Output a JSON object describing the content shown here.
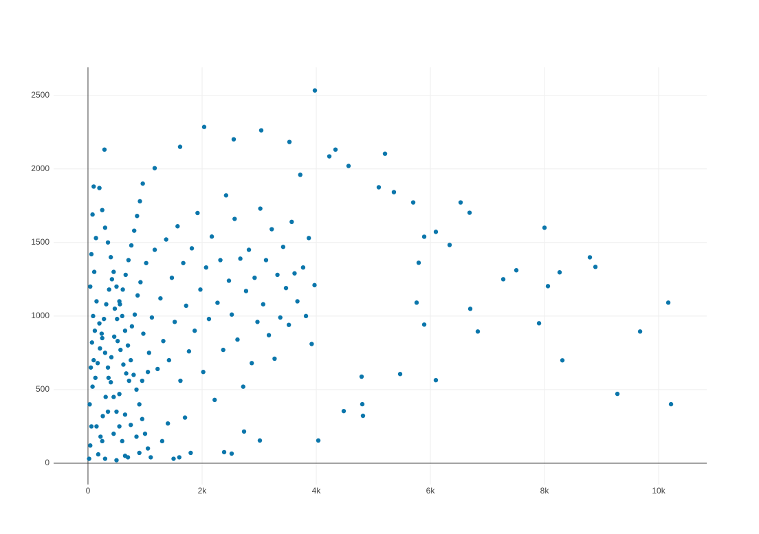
{
  "chart_data": {
    "type": "scatter",
    "color": "#0b76ab",
    "grid": true,
    "xlim": [
      -602,
      10843
    ],
    "ylim": [
      -145,
      2690
    ],
    "xticks": [
      {
        "value": 0,
        "label": "0"
      },
      {
        "value": 2000,
        "label": "2k"
      },
      {
        "value": 4000,
        "label": "4k"
      },
      {
        "value": 6000,
        "label": "6k"
      },
      {
        "value": 8000,
        "label": "8k"
      },
      {
        "value": 10000,
        "label": "10k"
      }
    ],
    "yticks": [
      0,
      500,
      1000,
      1500,
      2000,
      2500
    ],
    "x": [
      3976,
      2036,
      3036,
      2554,
      3530,
      1614,
      289,
      4337,
      5205,
      4229,
      4566,
      1169,
      5096,
      5361,
      5699,
      6530,
      6687,
      8000,
      6096,
      5892,
      6337,
      5795,
      8795,
      8892,
      7506,
      7277,
      8265,
      8060,
      10169,
      5759,
      6699,
      5892,
      6831,
      7904,
      9675,
      8313,
      5470,
      6096,
      9277,
      10217,
      4795,
      4807,
      4819,
      4482,
      4036,
      3012,
      2735,
      2386,
      2518,
      20,
      40,
      60,
      30,
      80,
      50,
      100,
      70,
      120,
      90,
      150,
      40,
      110,
      60,
      140,
      80,
      100,
      200,
      250,
      300,
      350,
      400,
      450,
      500,
      550,
      600,
      650,
      700,
      750,
      800,
      850,
      900,
      950,
      1000,
      1050,
      1100,
      180,
      220,
      260,
      310,
      360,
      410,
      460,
      510,
      560,
      610,
      660,
      710,
      760,
      810,
      860,
      910,
      960,
      200,
      250,
      300,
      350,
      400,
      450,
      500,
      550,
      600,
      650,
      130,
      170,
      210,
      240,
      280,
      320,
      370,
      420,
      470,
      520,
      570,
      620,
      670,
      720,
      770,
      820,
      870,
      920,
      970,
      1020,
      1070,
      1120,
      1170,
      1220,
      1270,
      1320,
      1370,
      1420,
      1470,
      1520,
      1570,
      1620,
      1670,
      1720,
      1770,
      1820,
      1870,
      1920,
      1970,
      2020,
      2070,
      2120,
      2170,
      2220,
      2270,
      2320,
      2370,
      2420,
      2470,
      2520,
      2570,
      2620,
      2670,
      2720,
      2770,
      2820,
      2870,
      2920,
      2970,
      3020,
      3070,
      3120,
      3170,
      3220,
      3270,
      3320,
      3370,
      3420,
      3470,
      3520,
      3570,
      3620,
      3670,
      3720,
      3770,
      3820,
      3870,
      3920,
      3970,
      1800,
      1600,
      1300,
      1400,
      1500,
      1700,
      300,
      500,
      700,
      900,
      150,
      250,
      350,
      450,
      550,
      650,
      750,
      850,
      950,
      1050
    ],
    "values": [
      2533,
      2285,
      2262,
      2201,
      2183,
      2150,
      2131,
      2131,
      2103,
      2085,
      2020,
      2005,
      1875,
      1842,
      1772,
      1772,
      1702,
      1600,
      1572,
      1539,
      1483,
      1362,
      1399,
      1334,
      1311,
      1250,
      1297,
      1203,
      1091,
      1091,
      1049,
      942,
      895,
      951,
      895,
      699,
      606,
      564,
      471,
      401,
      588,
      401,
      322,
      354,
      154,
      154,
      215,
      75,
      65,
      30,
      120,
      250,
      400,
      520,
      650,
      700,
      820,
      900,
      1000,
      1100,
      1200,
      1300,
      1420,
      1530,
      1690,
      1880,
      1870,
      1720,
      1600,
      1500,
      1400,
      1300,
      1200,
      1100,
      1000,
      900,
      800,
      700,
      600,
      500,
      400,
      300,
      200,
      100,
      40,
      60,
      180,
      320,
      450,
      580,
      720,
      860,
      980,
      1080,
      1180,
      1280,
      1380,
      1480,
      1580,
      1680,
      1780,
      1900,
      950,
      850,
      750,
      650,
      550,
      450,
      350,
      250,
      150,
      50,
      580,
      680,
      780,
      880,
      980,
      1080,
      1180,
      1250,
      1050,
      830,
      770,
      670,
      610,
      560,
      930,
      1010,
      1140,
      1230,
      880,
      1360,
      750,
      990,
      1450,
      640,
      1120,
      830,
      1520,
      700,
      1260,
      960,
      1610,
      560,
      1360,
      1070,
      760,
      1460,
      900,
      1700,
      1180,
      620,
      1330,
      980,
      1540,
      430,
      1090,
      1380,
      770,
      1820,
      1240,
      1010,
      1660,
      840,
      1390,
      520,
      1170,
      1450,
      680,
      1260,
      960,
      1730,
      1080,
      1380,
      870,
      1590,
      710,
      1280,
      990,
      1470,
      1190,
      940,
      1640,
      1290,
      1100,
      1960,
      1330,
      1000,
      1530,
      810,
      1210,
      70,
      40,
      150,
      270,
      30,
      310,
      30,
      20,
      40,
      70,
      250,
      150,
      350,
      200,
      470,
      330,
      260,
      180,
      560,
      620
    ]
  }
}
